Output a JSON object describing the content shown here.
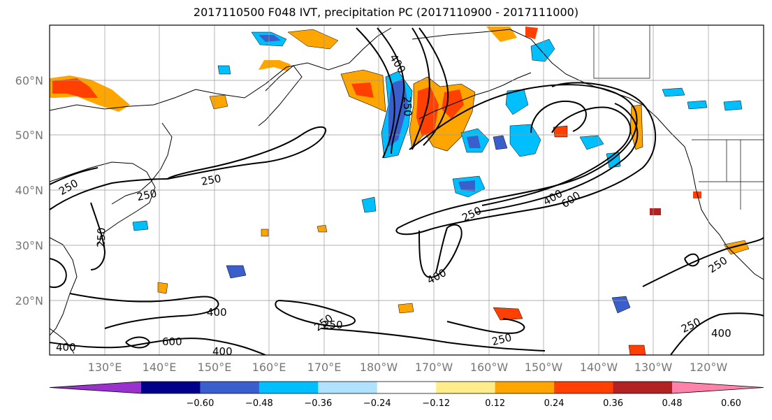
{
  "title": "2017110500 F048 IVT, precipitation PC (2017110900 - 2017111000)",
  "lat_labels": [
    "60°N",
    "50°N",
    "40°N",
    "30°N",
    "20°N"
  ],
  "lon_labels": [
    "130°E",
    "140°E",
    "150°E",
    "160°E",
    "170°E",
    "180°W",
    "170°W",
    "160°W",
    "150°W",
    "140°W",
    "130°W",
    "120°W"
  ],
  "ivt_contour_labels": [
    "400",
    "250",
    "250",
    "250",
    "250",
    "250",
    "400",
    "600",
    "250",
    "400",
    "400",
    "250",
    "250",
    "250",
    "600",
    "400",
    "250",
    "400",
    "400",
    "250",
    "250",
    "400"
  ],
  "colorbar": {
    "ticks": [
      "−0.60",
      "−0.48",
      "−0.36",
      "−0.24",
      "−0.12",
      "0.12",
      "0.24",
      "0.36",
      "0.48",
      "0.60"
    ],
    "colors": [
      "#9932cc",
      "#00008b",
      "#3a5fcd",
      "#00bfff",
      "#b0e2ff",
      "#ffffff",
      "#ffec8b",
      "#ffa500",
      "#ff4000",
      "#b22222",
      "#ff82ab"
    ]
  },
  "colors": {
    "land": "#000000",
    "grid": "#999999",
    "contour": "#000000"
  }
}
